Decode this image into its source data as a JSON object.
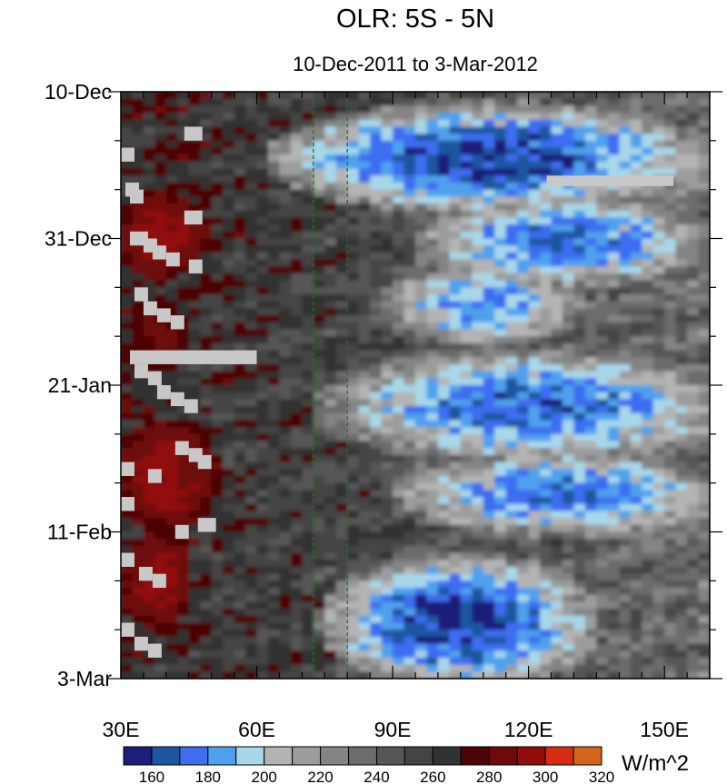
{
  "chart_data": {
    "type": "heatmap",
    "title": "OLR: 5S - 5N",
    "subtitle": "10-Dec-2011 to 3-Mar-2012",
    "x_axis": {
      "range": [
        30,
        160
      ],
      "ticks": [
        {
          "value": 30,
          "label": "30E"
        },
        {
          "value": 60,
          "label": "60E"
        },
        {
          "value": 90,
          "label": "90E"
        },
        {
          "value": 120,
          "label": "120E"
        },
        {
          "value": 150,
          "label": "150E"
        }
      ],
      "minor_step": 5
    },
    "y_axis": {
      "range_days": [
        0,
        84
      ],
      "direction": "time increases downward",
      "ticks": [
        {
          "day": 0,
          "label": "10-Dec"
        },
        {
          "day": 21,
          "label": "31-Dec"
        },
        {
          "day": 42,
          "label": "21-Jan"
        },
        {
          "day": 63,
          "label": "11-Feb"
        },
        {
          "day": 84,
          "label": "3-Mar"
        }
      ],
      "minor_step_days": 7
    },
    "reference_lines": [
      {
        "lon": 72.5,
        "style": "dashed",
        "color": "#1a7a1a"
      },
      {
        "lon": 80,
        "style": "dashed",
        "color": "#1a7a1a"
      }
    ],
    "colorbar": {
      "units": "W/m^2",
      "colors": [
        "#1c1e7a",
        "#1e56a0",
        "#3d6df0",
        "#4fa0ee",
        "#a8d7ea",
        "#b4b4b4",
        "#9c9c9c",
        "#848484",
        "#6c6c6c",
        "#565656",
        "#444444",
        "#323232",
        "#4d0505",
        "#6e0a0a",
        "#920c0c",
        "#d62d12",
        "#d2641c"
      ],
      "labels": [
        "160",
        "180",
        "200",
        "220",
        "240",
        "260",
        "280",
        "300",
        "320"
      ],
      "label_indices": [
        1,
        3,
        5,
        7,
        9,
        11,
        13,
        15,
        17
      ]
    },
    "features": {
      "convection": [
        {
          "lon": [
            72,
            150
          ],
          "day": [
            3,
            16
          ],
          "olr_min": 160
        },
        {
          "lon": [
            100,
            155
          ],
          "day": [
            16,
            27
          ],
          "olr_min": 170
        },
        {
          "lon": [
            90,
            130
          ],
          "day": [
            25,
            36
          ],
          "olr_min": 180
        },
        {
          "lon": [
            82,
            160
          ],
          "day": [
            38,
            52
          ],
          "olr_min": 170
        },
        {
          "lon": [
            95,
            160
          ],
          "day": [
            52,
            63
          ],
          "olr_min": 175
        },
        {
          "lon": [
            80,
            130
          ],
          "day": [
            68,
            84
          ],
          "olr_min": 160
        }
      ],
      "suppressed": [
        {
          "lon": [
            30,
            48
          ],
          "day": [
            15,
            26
          ],
          "olr_max": 300
        },
        {
          "lon": [
            30,
            50
          ],
          "day": [
            48,
            62
          ],
          "olr_max": 300
        },
        {
          "lon": [
            32,
            45
          ],
          "day": [
            30,
            40
          ],
          "olr_max": 290
        },
        {
          "lon": [
            32,
            45
          ],
          "day": [
            64,
            76
          ],
          "olr_max": 300
        }
      ]
    }
  }
}
